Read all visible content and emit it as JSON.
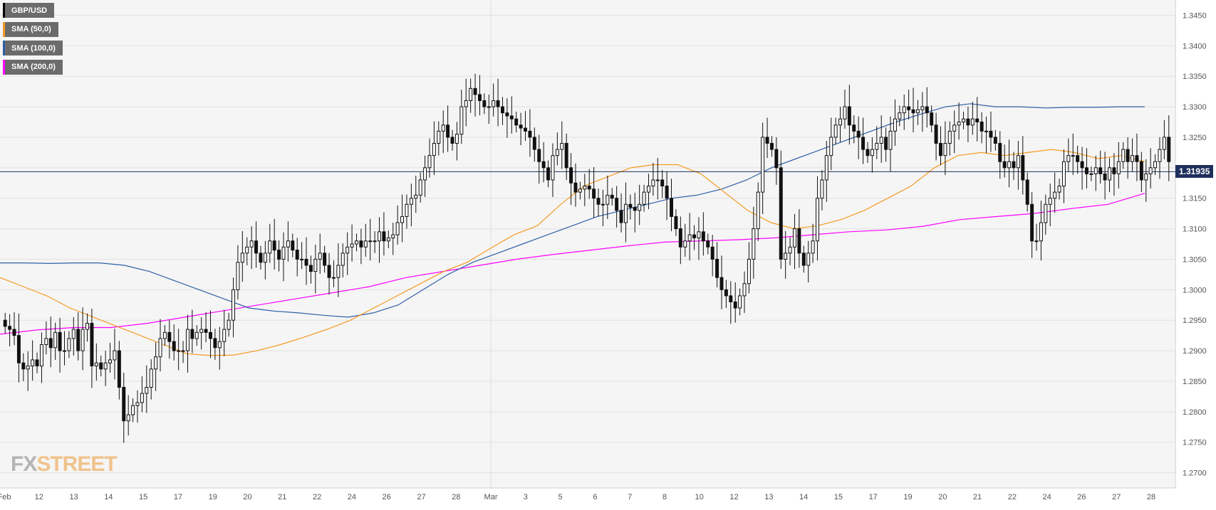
{
  "chart_data": {
    "type": "candlestick",
    "title": "GBP/USD",
    "ylim": [
      1.2675,
      1.3475
    ],
    "y_ticks": [
      "1.3450",
      "1.3400",
      "1.3350",
      "1.3300",
      "1.3250",
      "1.3200",
      "1.3150",
      "1.3100",
      "1.3050",
      "1.3000",
      "1.2950",
      "1.2900",
      "1.2850",
      "1.2800",
      "1.2750",
      "1.2700"
    ],
    "x_ticks": [
      "Feb",
      "12",
      "13",
      "14",
      "15",
      "17",
      "19",
      "20",
      "21",
      "22",
      "24",
      "26",
      "27",
      "28",
      "Mar",
      "3",
      "5",
      "6",
      "7",
      "8",
      "10",
      "12",
      "13",
      "14",
      "15",
      "17",
      "19",
      "20",
      "21",
      "22",
      "24",
      "26",
      "27",
      "28"
    ],
    "current_price": "1.31935",
    "grid": true,
    "legend_position": "top-left",
    "series_legend": [
      {
        "name": "GBP/USD",
        "color": "#000000"
      },
      {
        "name": "SMA (50,0)",
        "color": "#f59a23"
      },
      {
        "name": "SMA (100,0)",
        "color": "#2e5fa8"
      },
      {
        "name": "SMA (200,0)",
        "color": "#ff00ff"
      }
    ],
    "closes": [
      1.294,
      1.2935,
      1.2925,
      1.288,
      1.287,
      1.2875,
      1.2885,
      1.2875,
      1.291,
      1.292,
      1.2905,
      1.293,
      1.29,
      1.29,
      1.292,
      1.2935,
      1.29,
      1.2935,
      1.2945,
      1.2875,
      1.288,
      1.287,
      1.288,
      1.2885,
      1.29,
      1.284,
      1.2785,
      1.2795,
      1.281,
      1.2815,
      1.283,
      1.284,
      1.287,
      1.289,
      1.292,
      1.293,
      1.2915,
      1.29,
      1.29,
      1.29,
      1.2935,
      1.292,
      1.293,
      1.2935,
      1.293,
      1.292,
      1.2905,
      1.2915,
      1.2935,
      1.295,
      1.3,
      1.3045,
      1.306,
      1.307,
      1.308,
      1.306,
      1.3045,
      1.306,
      1.308,
      1.3065,
      1.305,
      1.307,
      1.308,
      1.3065,
      1.305,
      1.305,
      1.304,
      1.303,
      1.305,
      1.306,
      1.304,
      1.302,
      1.302,
      1.304,
      1.306,
      1.307,
      1.3075,
      1.308,
      1.307,
      1.308,
      1.308,
      1.308,
      1.3095,
      1.308,
      1.3085,
      1.309,
      1.311,
      1.312,
      1.314,
      1.315,
      1.3155,
      1.318,
      1.32,
      1.322,
      1.324,
      1.326,
      1.327,
      1.325,
      1.324,
      1.3255,
      1.33,
      1.331,
      1.333,
      1.332,
      1.331,
      1.33,
      1.33,
      1.331,
      1.33,
      1.329,
      1.3285,
      1.328,
      1.327,
      1.3265,
      1.326,
      1.325,
      1.323,
      1.321,
      1.32,
      1.318,
      1.322,
      1.323,
      1.324,
      1.32,
      1.3175,
      1.316,
      1.3165,
      1.317,
      1.3165,
      1.315,
      1.314,
      1.314,
      1.3155,
      1.315,
      1.313,
      1.311,
      1.314,
      1.3135,
      1.313,
      1.314,
      1.316,
      1.317,
      1.318,
      1.318,
      1.317,
      1.315,
      1.312,
      1.31,
      1.307,
      1.308,
      1.309,
      1.3085,
      1.3095,
      1.308,
      1.307,
      1.305,
      1.302,
      1.3,
      1.299,
      1.298,
      1.297,
      1.299,
      1.301,
      1.305,
      1.31,
      1.316,
      1.325,
      1.324,
      1.323,
      1.32,
      1.305,
      1.306,
      1.307,
      1.31,
      1.306,
      1.304,
      1.306,
      1.308,
      1.315,
      1.318,
      1.322,
      1.325,
      1.327,
      1.328,
      1.33,
      1.327,
      1.326,
      1.325,
      1.323,
      1.322,
      1.323,
      1.324,
      1.325,
      1.323,
      1.326,
      1.328,
      1.329,
      1.33,
      1.3295,
      1.329,
      1.3295,
      1.33,
      1.329,
      1.327,
      1.324,
      1.322,
      1.324,
      1.326,
      1.327,
      1.3275,
      1.328,
      1.327,
      1.328,
      1.3275,
      1.326,
      1.326,
      1.325,
      1.324,
      1.321,
      1.32,
      1.321,
      1.32,
      1.322,
      1.318,
      1.314,
      1.308,
      1.308,
      1.311,
      1.314,
      1.315,
      1.316,
      1.317,
      1.321,
      1.322,
      1.322,
      1.321,
      1.32,
      1.319,
      1.319,
      1.32,
      1.319,
      1.318,
      1.32,
      1.319,
      1.321,
      1.323,
      1.321,
      1.322,
      1.321,
      1.318,
      1.319,
      1.32,
      1.321,
      1.323,
      1.325,
      1.321
    ],
    "sma_50": [
      1.302,
      1.3005,
      1.299,
      1.297,
      1.2955,
      1.294,
      1.2925,
      1.291,
      1.2895,
      1.2892,
      1.2893,
      1.29,
      1.291,
      1.2922,
      1.2935,
      1.295,
      1.297,
      1.299,
      1.301,
      1.303,
      1.3045,
      1.3068,
      1.309,
      1.3105,
      1.314,
      1.317,
      1.3185,
      1.32,
      1.3205,
      1.3205,
      1.319,
      1.316,
      1.313,
      1.311,
      1.31,
      1.3105,
      1.3115,
      1.313,
      1.315,
      1.317,
      1.32,
      1.322,
      1.3225,
      1.322,
      1.3225,
      1.323,
      1.3225,
      1.3215,
      1.322,
      1.321
    ],
    "sma_100": [
      1.3044,
      1.3044,
      1.3043,
      1.3044,
      1.3044,
      1.304,
      1.303,
      1.3015,
      1.3,
      1.2985,
      1.297,
      1.2965,
      1.2962,
      1.2958,
      1.2955,
      1.2962,
      1.2975,
      1.3,
      1.3025,
      1.3045,
      1.306,
      1.3075,
      1.309,
      1.3105,
      1.312,
      1.313,
      1.314,
      1.315,
      1.3155,
      1.3165,
      1.318,
      1.32,
      1.3215,
      1.323,
      1.3245,
      1.326,
      1.3275,
      1.3288,
      1.33,
      1.3305,
      1.33,
      1.33,
      1.3298,
      1.3299,
      1.3299,
      1.33,
      1.33
    ],
    "sma_200": [
      1.2927,
      1.2934,
      1.2938,
      1.2938,
      1.2945,
      1.2955,
      1.2965,
      1.2975,
      1.2985,
      1.2995,
      1.3005,
      1.302,
      1.303,
      1.304,
      1.305,
      1.3058,
      1.3065,
      1.3072,
      1.3078,
      1.308,
      1.3082,
      1.3085,
      1.309,
      1.3095,
      1.3098,
      1.3104,
      1.3115,
      1.312,
      1.3125,
      1.3133,
      1.314,
      1.3158
    ]
  }
}
